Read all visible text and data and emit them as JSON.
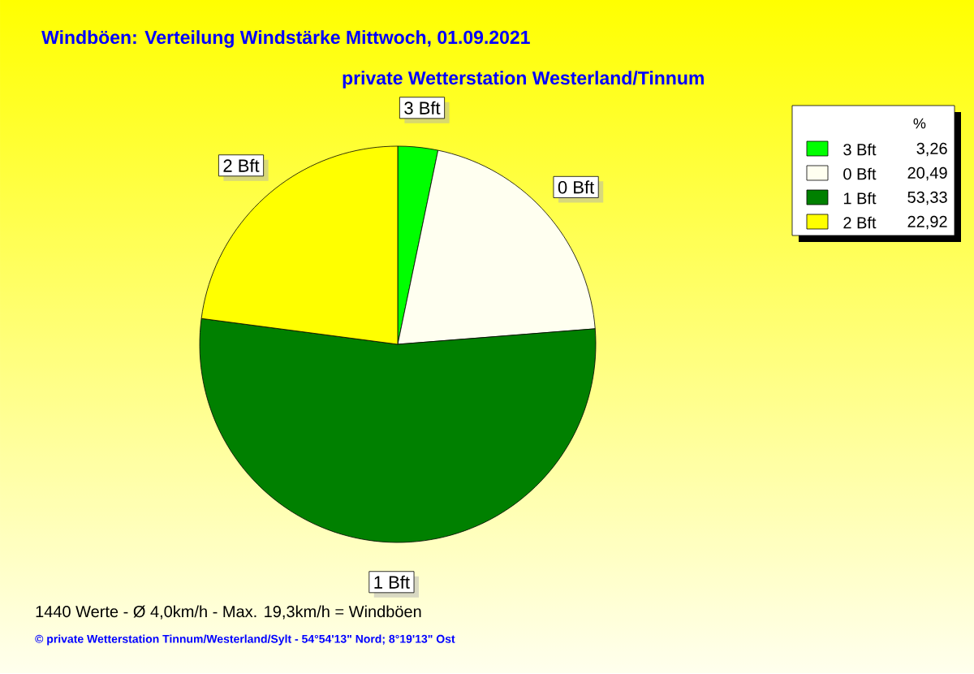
{
  "chart_data": {
    "type": "pie",
    "title": "Windböen: Verteilung Windstärke  Mittwoch, 01.09.2021",
    "subtitle": "private Wetterstation Westerland/Tinnum",
    "categories": [
      "3 Bft",
      "0 Bft",
      "1 Bft",
      "2 Bft"
    ],
    "values": [
      3.26,
      20.49,
      53.33,
      22.92
    ],
    "value_labels": [
      "3,26",
      "20,49",
      "53,33",
      "22,92"
    ],
    "colors": [
      "#00ff00",
      "#fffff0",
      "#008000",
      "#ffff00"
    ],
    "legend": "top right",
    "legend_title": "%",
    "annotations": [
      "1440 Werte   -   Ø 4,0km/h  -  Max. 19,3km/h = Windböen",
      "© private Wetterstation Tinnum/Westerland/Sylt   -   54°54'13\" Nord; 8°19'13\" Ost"
    ]
  }
}
